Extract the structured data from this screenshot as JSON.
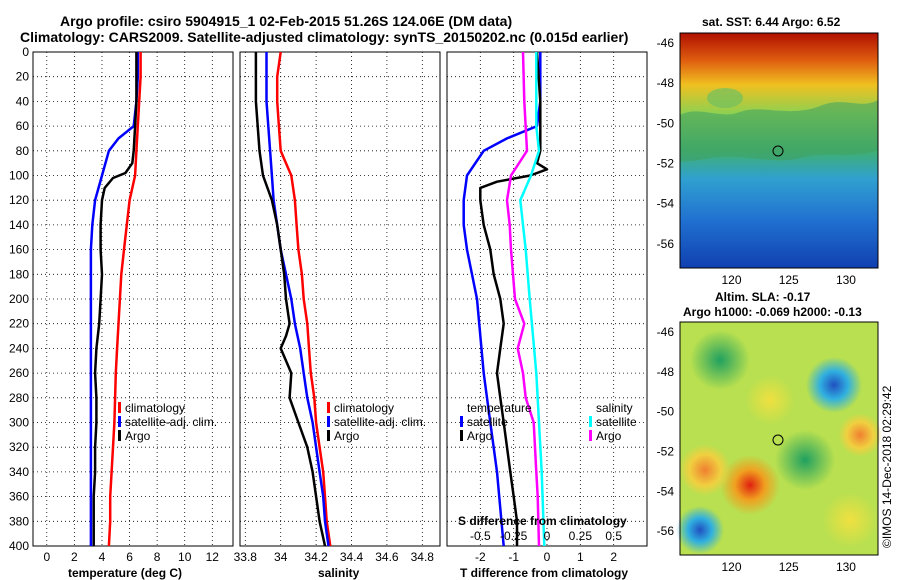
{
  "header": {
    "title_line1": "Argo profile: csiro 5904915_1 02-Feb-2015 51.26S 124.06E (DM data)",
    "title_line2": "Climatology: CARS2009. Satellite-adjusted climatology: synTS_20150202.nc (0.015d earlier)"
  },
  "colors": {
    "climatology": "#ff0000",
    "satellite": "#0000ff",
    "argo": "#000000",
    "salinity_satellite": "#00ffff",
    "salinity_argo": "#ff00ff"
  },
  "chart_data": [
    {
      "type": "line",
      "id": "temperature",
      "xlabel": "temperature (deg C)",
      "xlim": [
        -1,
        13.5
      ],
      "ylim": [
        400,
        0
      ],
      "xticks": [
        0,
        2,
        4,
        6,
        8,
        10,
        12
      ],
      "depth_ticks": [
        0,
        20,
        40,
        60,
        80,
        100,
        120,
        140,
        160,
        180,
        200,
        220,
        240,
        260,
        280,
        300,
        320,
        340,
        360,
        380,
        400
      ],
      "series": [
        {
          "name": "climatology",
          "color": "#ff0000",
          "depth": [
            0,
            20,
            40,
            60,
            80,
            100,
            120,
            140,
            160,
            180,
            200,
            220,
            240,
            260,
            280,
            300,
            320,
            340,
            360,
            380,
            400
          ],
          "values": [
            6.8,
            6.8,
            6.7,
            6.6,
            6.5,
            6.4,
            6.0,
            5.8,
            5.6,
            5.4,
            5.3,
            5.2,
            5.1,
            5.0,
            4.95,
            4.9,
            4.8,
            4.7,
            4.6,
            4.6,
            4.5
          ]
        },
        {
          "name": "satellite-adj. clim.",
          "color": "#0000ff",
          "depth": [
            0,
            20,
            40,
            60,
            70,
            80,
            100,
            120,
            140,
            160,
            200,
            260,
            300,
            340,
            400
          ],
          "values": [
            6.6,
            6.6,
            6.5,
            6.3,
            5.2,
            4.5,
            4.0,
            3.5,
            3.3,
            3.2,
            3.2,
            3.2,
            3.2,
            3.2,
            3.2
          ]
        },
        {
          "name": "Argo",
          "color": "#000000",
          "depth": [
            0,
            20,
            40,
            60,
            80,
            90,
            98,
            102,
            110,
            120,
            140,
            160,
            180,
            200,
            220,
            240,
            260,
            280,
            300,
            320,
            340,
            360,
            380,
            400
          ],
          "values": [
            6.5,
            6.5,
            6.5,
            6.4,
            6.3,
            6.2,
            5.7,
            4.8,
            4.2,
            4.0,
            3.9,
            3.9,
            4.0,
            3.9,
            3.8,
            3.6,
            3.5,
            3.6,
            3.6,
            3.5,
            3.5,
            3.4,
            3.4,
            3.4
          ]
        }
      ],
      "legend": [
        "climatology",
        "satellite-adj. clim.",
        "Argo"
      ]
    },
    {
      "type": "line",
      "id": "salinity",
      "xlabel": "salinity",
      "xlim": [
        33.77,
        34.9
      ],
      "ylim": [
        400,
        0
      ],
      "xticks": [
        33.8,
        34,
        34.2,
        34.4,
        34.6,
        34.8
      ],
      "series": [
        {
          "name": "climatology",
          "color": "#ff0000",
          "depth": [
            0,
            20,
            40,
            60,
            80,
            90,
            100,
            120,
            140,
            160,
            180,
            200,
            220,
            240,
            260,
            280,
            300,
            320,
            340,
            360,
            380,
            400
          ],
          "values": [
            34.0,
            33.98,
            33.98,
            33.99,
            34.0,
            34.03,
            34.06,
            34.08,
            34.09,
            34.1,
            34.12,
            34.13,
            34.15,
            34.16,
            34.17,
            34.19,
            34.2,
            34.22,
            34.24,
            34.25,
            34.26,
            34.28
          ]
        },
        {
          "name": "satellite-adj. clim.",
          "color": "#0000ff",
          "depth": [
            0,
            20,
            40,
            60,
            80,
            100,
            120,
            140,
            160,
            180,
            200,
            220,
            240,
            260,
            280,
            300,
            320,
            340,
            360,
            380,
            400
          ],
          "values": [
            33.92,
            33.92,
            33.92,
            33.93,
            33.94,
            33.95,
            33.96,
            33.98,
            34.0,
            34.03,
            34.06,
            34.08,
            34.11,
            34.13,
            34.15,
            34.18,
            34.2,
            34.22,
            34.24,
            34.25,
            34.27
          ]
        },
        {
          "name": "Argo",
          "color": "#000000",
          "depth": [
            0,
            20,
            40,
            60,
            80,
            100,
            120,
            140,
            160,
            180,
            200,
            220,
            230,
            240,
            260,
            280,
            300,
            320,
            340,
            360,
            380,
            400
          ],
          "values": [
            33.86,
            33.86,
            33.86,
            33.87,
            33.88,
            33.9,
            33.95,
            33.98,
            34.0,
            34.02,
            34.03,
            34.05,
            34.03,
            34.0,
            34.06,
            34.05,
            34.1,
            34.15,
            34.18,
            34.2,
            34.22,
            34.25
          ]
        }
      ],
      "legend": [
        "climatology",
        "satellite-adj. clim.",
        "Argo"
      ]
    },
    {
      "type": "line",
      "id": "difference",
      "xlabel": "T difference from climatology",
      "xlabel2": "S difference from climatology",
      "xlim": [
        -3,
        3
      ],
      "ylim": [
        400,
        0
      ],
      "xticks": [
        -2,
        -1,
        0,
        1,
        2
      ],
      "s_ticks": [
        "-0.5",
        "-0.25",
        "0",
        "0.25",
        "0.5"
      ],
      "series": [
        {
          "name": "temperature satellite",
          "color": "#0000ff",
          "depth": [
            0,
            40,
            60,
            70,
            80,
            100,
            120,
            140,
            160,
            200,
            260,
            300,
            340,
            400
          ],
          "values": [
            -0.2,
            -0.2,
            -0.3,
            -1.2,
            -1.9,
            -2.4,
            -2.5,
            -2.5,
            -2.4,
            -2.1,
            -1.9,
            -1.7,
            -1.5,
            -1.3
          ]
        },
        {
          "name": "temperature Argo",
          "color": "#000000",
          "depth": [
            0,
            40,
            60,
            80,
            90,
            95,
            100,
            105,
            110,
            120,
            140,
            160,
            180,
            200,
            220,
            240,
            260,
            280,
            300,
            320,
            340,
            360,
            380,
            400
          ],
          "values": [
            -0.3,
            -0.2,
            -0.2,
            -0.2,
            -0.3,
            0.0,
            -0.5,
            -1.5,
            -2.0,
            -2.0,
            -1.9,
            -1.7,
            -1.6,
            -1.4,
            -1.3,
            -1.4,
            -1.5,
            -1.4,
            -1.3,
            -1.2,
            -1.1,
            -1.0,
            -0.9,
            -0.9
          ]
        },
        {
          "name": "salinity satellite",
          "color": "#00ffff",
          "depth": [
            0,
            60,
            80,
            100,
            120,
            160,
            200,
            260,
            300,
            340,
            400
          ],
          "values": [
            -0.08,
            -0.08,
            -0.06,
            -0.12,
            -0.2,
            -0.16,
            -0.13,
            -0.08,
            -0.06,
            -0.04,
            -0.02
          ]
        },
        {
          "name": "salinity Argo",
          "color": "#ff00ff",
          "depth": [
            0,
            40,
            80,
            100,
            120,
            140,
            160,
            200,
            220,
            240,
            260,
            280,
            300,
            320,
            340,
            360,
            400
          ],
          "values": [
            -0.18,
            -0.17,
            -0.15,
            -0.27,
            -0.3,
            -0.28,
            -0.27,
            -0.24,
            -0.17,
            -0.22,
            -0.18,
            -0.16,
            -0.1,
            -0.09,
            -0.08,
            -0.07,
            -0.06
          ]
        }
      ],
      "legend_temperature": {
        "title": "temperature",
        "items": [
          "satellite",
          "Argo"
        ]
      },
      "legend_salinity": {
        "title": "salinity",
        "items": [
          "satellite",
          "Argo"
        ]
      }
    },
    {
      "type": "heatmap",
      "id": "sst_map",
      "title": "sat. SST: 6.44 Argo: 6.52",
      "lat_ticks": [
        -46,
        -48,
        -50,
        -52,
        -54,
        -56
      ],
      "lon_ticks": [
        120,
        125,
        130
      ],
      "profile_location": {
        "lon": 124.06,
        "lat": -51.26
      }
    },
    {
      "type": "heatmap",
      "id": "sla_map",
      "title_line1": "Altim. SLA: -0.17",
      "title_line2": "Argo h1000: -0.069 h2000: -0.13",
      "lat_ticks": [
        -46,
        -48,
        -50,
        -52,
        -54,
        -56
      ],
      "lon_ticks": [
        120,
        125,
        130
      ],
      "profile_location": {
        "lon": 124.06,
        "lat": -51.26
      }
    }
  ],
  "footer": {
    "credit": "©IMOS 14-Dec-2018 02:29:42"
  }
}
